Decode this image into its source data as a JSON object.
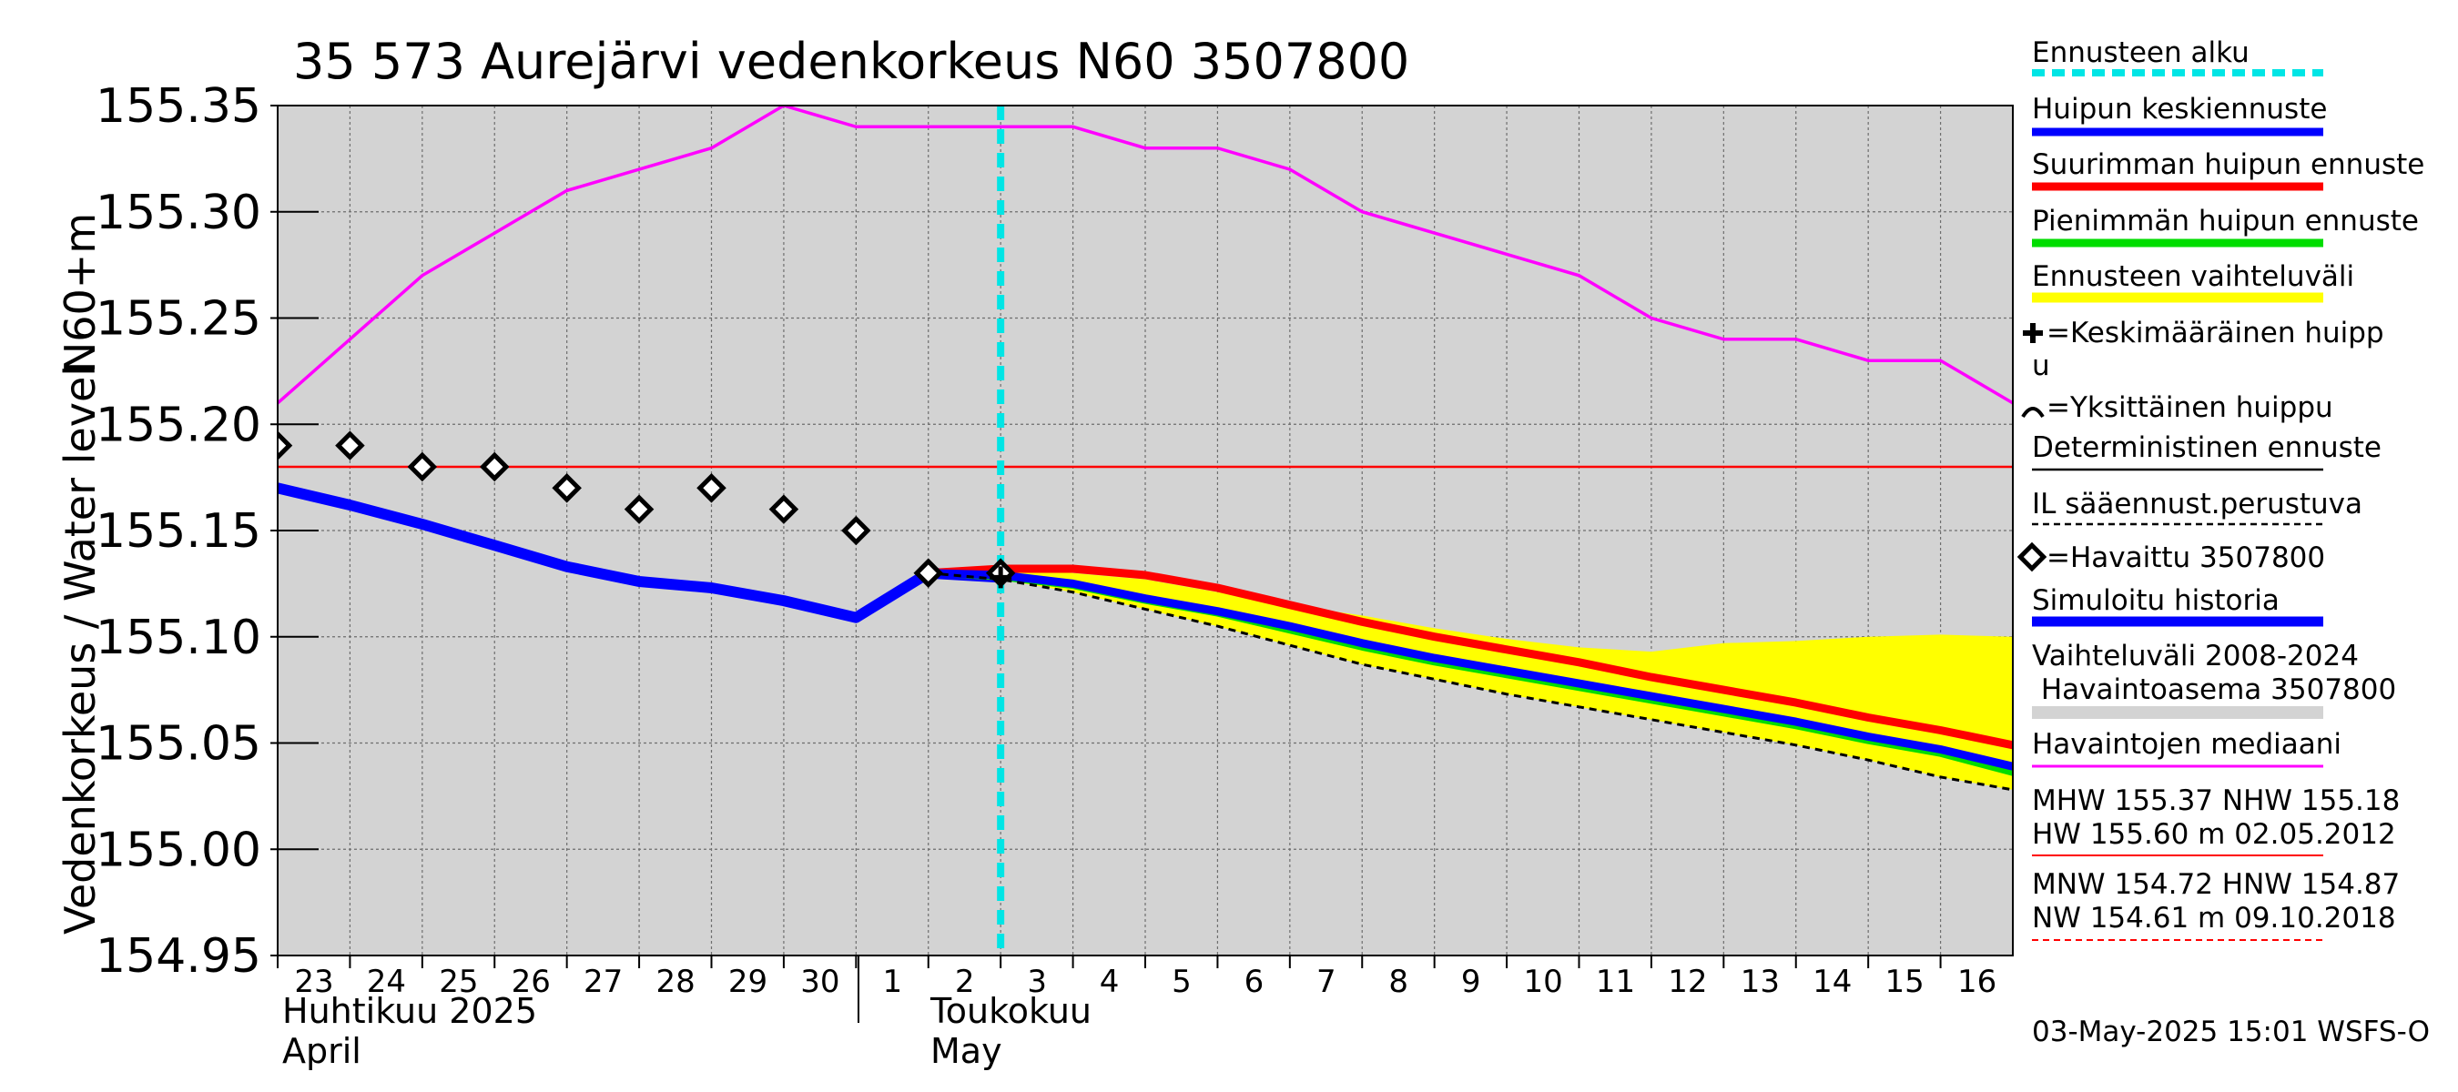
{
  "chart_data": {
    "type": "line",
    "title": "35 573 Aurejärvi vedenkorkeus N60 3507800",
    "ylabel_top": "N60+m",
    "ylabel_main": "Vedenkorkeus / Water level",
    "ylim": [
      154.95,
      155.35
    ],
    "yticks": [
      "155.35",
      "155.30",
      "155.25",
      "155.20",
      "155.15",
      "155.10",
      "155.05",
      "155.00",
      "154.95"
    ],
    "x_start_day": 0,
    "x_end_day": 24,
    "x_note": "x = days since 23 April 2025 (0 = Apr 23, 9 = May 2, 10 = May 3)",
    "day_labels": [
      "23",
      "24",
      "25",
      "26",
      "27",
      "28",
      "29",
      "30",
      "1",
      "2",
      "3",
      "4",
      "5",
      "6",
      "7",
      "8",
      "9",
      "10",
      "11",
      "12",
      "13",
      "14",
      "15",
      "16"
    ],
    "month_labels": {
      "april_fi": "Huhtikuu  2025",
      "april_en": "April",
      "may_fi": "Toukokuu",
      "may_en": "May"
    },
    "forecast_start_day": 10,
    "hw_line": 155.18,
    "series": [
      {
        "name": "Havaintojen mediaani",
        "color": "#ff00ff",
        "x": [
          0,
          1,
          2,
          3,
          4,
          5,
          6,
          7,
          8,
          9,
          10,
          11,
          12,
          13,
          14,
          15,
          16,
          17,
          18,
          19,
          20,
          21,
          22,
          23,
          24
        ],
        "y": [
          155.21,
          155.24,
          155.27,
          155.29,
          155.31,
          155.32,
          155.33,
          155.35,
          155.34,
          155.34,
          155.34,
          155.34,
          155.33,
          155.33,
          155.32,
          155.3,
          155.29,
          155.28,
          155.27,
          155.25,
          155.24,
          155.24,
          155.23,
          155.23,
          155.21
        ]
      },
      {
        "name": "Simuloitu historia",
        "color": "#0000ff",
        "x": [
          0,
          1,
          2,
          3,
          4,
          5,
          6,
          7,
          8,
          9,
          10
        ],
        "y": [
          155.17,
          155.162,
          155.153,
          155.143,
          155.133,
          155.126,
          155.123,
          155.117,
          155.109,
          155.13,
          155.128
        ]
      },
      {
        "name": "Suurimman huipun ennuste",
        "color": "#ff0000",
        "x": [
          9,
          10,
          11,
          12,
          13,
          14,
          15,
          16,
          17,
          18,
          19,
          20,
          21,
          22,
          23,
          24
        ],
        "y": [
          155.13,
          155.132,
          155.132,
          155.129,
          155.123,
          155.115,
          155.107,
          155.1,
          155.094,
          155.088,
          155.081,
          155.075,
          155.069,
          155.062,
          155.056,
          155.049
        ]
      },
      {
        "name": "Pienimmän huipun ennuste",
        "color": "#00dd00",
        "x": [
          9,
          10,
          11,
          12,
          13,
          14,
          15,
          16,
          17,
          18,
          19,
          20,
          21,
          22,
          23,
          24
        ],
        "y": [
          155.13,
          155.128,
          155.124,
          155.117,
          155.111,
          155.103,
          155.095,
          155.088,
          155.082,
          155.076,
          155.07,
          155.064,
          155.058,
          155.051,
          155.045,
          155.036
        ]
      },
      {
        "name": "Huipun keskiennuste",
        "color": "#0000ff",
        "x": [
          9,
          10,
          11,
          12,
          13,
          14,
          15,
          16,
          17,
          18,
          19,
          20,
          21,
          22,
          23,
          24
        ],
        "y": [
          155.13,
          155.129,
          155.125,
          155.118,
          155.112,
          155.105,
          155.097,
          155.09,
          155.084,
          155.078,
          155.072,
          155.066,
          155.06,
          155.053,
          155.047,
          155.039
        ]
      },
      {
        "name": "IL sääennust.perustuva",
        "color": "#000000",
        "x": [
          9,
          10,
          11,
          12,
          13,
          14,
          15,
          16,
          17,
          18,
          19,
          20,
          21,
          22,
          23,
          24
        ],
        "y": [
          155.13,
          155.127,
          155.121,
          155.113,
          155.105,
          155.096,
          155.087,
          155.08,
          155.073,
          155.067,
          155.061,
          155.055,
          155.049,
          155.042,
          155.034,
          155.028
        ]
      }
    ],
    "band_upper": {
      "x": [
        9,
        10,
        11,
        12,
        13,
        14,
        15,
        16,
        17,
        18,
        19,
        20,
        21,
        22,
        23,
        24
      ],
      "y": [
        155.13,
        155.132,
        155.13,
        155.127,
        155.121,
        155.115,
        155.11,
        155.104,
        155.099,
        155.095,
        155.093,
        155.097,
        155.098,
        155.1,
        155.101,
        155.1
      ]
    },
    "band_lower": {
      "x": [
        9,
        10,
        11,
        12,
        13,
        14,
        15,
        16,
        17,
        18,
        19,
        20,
        21,
        22,
        23,
        24
      ],
      "y": [
        155.13,
        155.127,
        155.121,
        155.113,
        155.105,
        155.096,
        155.087,
        155.08,
        155.073,
        155.067,
        155.061,
        155.055,
        155.049,
        155.042,
        155.034,
        155.028
      ]
    },
    "observed": {
      "x": [
        0,
        1,
        2,
        3,
        4,
        5,
        6,
        7,
        8,
        9,
        10
      ],
      "y": [
        155.19,
        155.19,
        155.18,
        155.18,
        155.17,
        155.16,
        155.17,
        155.16,
        155.15,
        155.13,
        155.13
      ]
    },
    "mean_peak_marker": {
      "x": 10,
      "y": 155.128
    }
  },
  "legend": {
    "forecast_start": "Ennusteen alku",
    "mean_forecast": "Huipun keskiennuste",
    "max_forecast": "Suurimman huipun ennuste",
    "min_forecast": "Pienimmän huipun ennuste",
    "range": "Ennusteen vaihteluväli",
    "mean_peak_1": "=Keskimääräinen huipp",
    "mean_peak_2": "u",
    "single_peak": "=Yksittäinen huippu",
    "deterministic": "Deterministinen ennuste",
    "il": "IL sääennust.perustuva",
    "observed": "=Havaittu 3507800",
    "simulated": "Simuloitu historia",
    "var_range_1": "Vaihteluväli 2008-2024",
    "var_range_2": " Havaintoasema 3507800",
    "median": "Havaintojen mediaani",
    "mhw": "MHW 155.37 NHW 155.18",
    "hw": "HW 155.60 m 02.05.2012",
    "mnw": "MNW 154.72 HNW 154.87",
    "nw": "NW 154.61 m 09.10.2018"
  },
  "colors": {
    "plot_bg": "#d3d3d3",
    "band": "#ffff00",
    "forecast_start": "#00e5e5",
    "hw": "#ff0000",
    "nw": "#ff0000"
  },
  "timestamp": "03-May-2025 15:01 WSFS-O"
}
